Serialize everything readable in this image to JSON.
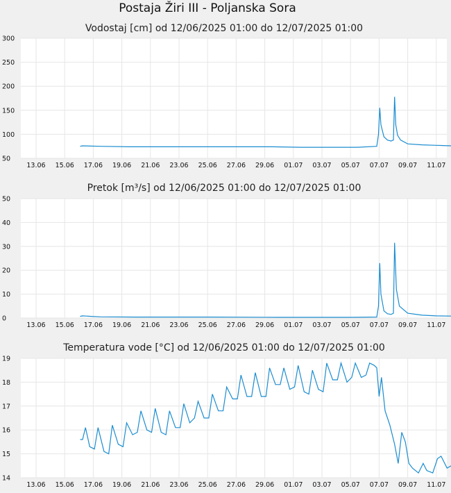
{
  "title": "Postaja Žiri III - Poljanska Sora",
  "chart_data": [
    {
      "type": "line",
      "title": "Vodostaj [cm] od 12/06/2025 01:00 do 12/07/2025 01:00",
      "xlim": [
        "2025-06-12 01:00",
        "2025-07-12 01:00"
      ],
      "ylim": [
        50,
        300
      ],
      "yticks": [
        "300",
        "250",
        "200",
        "150",
        "100",
        "50"
      ],
      "xticks": [
        "13.06",
        "15.06",
        "17.06",
        "19.06",
        "21.06",
        "23.06",
        "25.06",
        "27.06",
        "29.06",
        "01.07",
        "03.07",
        "05.07",
        "07.07",
        "09.07",
        "11.07"
      ],
      "grid": true,
      "color": "#1a8cd0",
      "series": [
        {
          "x": [
            "2025-06-16 02:00",
            "2025-06-16 06:00",
            "2025-06-17 12:00",
            "2025-06-19 12:00",
            "2025-06-21 12:00",
            "2025-06-23 12:00",
            "2025-06-25 12:00",
            "2025-06-27 12:00",
            "2025-06-29 12:00",
            "2025-07-01 12:00",
            "2025-07-03 12:00",
            "2025-07-05 12:00",
            "2025-07-06 20:00",
            "2025-07-06 23:00",
            "2025-07-07 01:00",
            "2025-07-07 03:00",
            "2025-07-07 08:00",
            "2025-07-07 14:00",
            "2025-07-07 20:00",
            "2025-07-08 00:00",
            "2025-07-08 02:00",
            "2025-07-08 04:00",
            "2025-07-08 07:00",
            "2025-07-08 12:00",
            "2025-07-09 00:00",
            "2025-07-10 00:00",
            "2025-07-11 00:00",
            "2025-07-12 01:00"
          ],
          "y": [
            75,
            76,
            75,
            74,
            74,
            74,
            74,
            74,
            74,
            73,
            73,
            73,
            75,
            100,
            155,
            120,
            95,
            88,
            86,
            88,
            178,
            120,
            98,
            88,
            80,
            78,
            77,
            76
          ]
        }
      ]
    },
    {
      "type": "line",
      "title": "Pretok [m³/s] od 12/06/2025 01:00 do 12/07/2025 01:00",
      "xlim": [
        "2025-06-12 01:00",
        "2025-07-12 01:00"
      ],
      "ylim": [
        0,
        50
      ],
      "yticks": [
        "50",
        "40",
        "30",
        "20",
        "10",
        "0"
      ],
      "xticks": [
        "13.06",
        "15.06",
        "17.06",
        "19.06",
        "21.06",
        "23.06",
        "25.06",
        "27.06",
        "29.06",
        "01.07",
        "03.07",
        "05.07",
        "07.07",
        "09.07",
        "11.07"
      ],
      "grid": true,
      "color": "#1a8cd0",
      "series": [
        {
          "x": [
            "2025-06-16 02:00",
            "2025-06-16 06:00",
            "2025-06-16 12:00",
            "2025-06-17 12:00",
            "2025-06-20 00:00",
            "2025-06-25 00:00",
            "2025-06-30 00:00",
            "2025-07-05 00:00",
            "2025-07-06 20:00",
            "2025-07-06 23:00",
            "2025-07-07 01:00",
            "2025-07-07 03:00",
            "2025-07-07 08:00",
            "2025-07-07 14:00",
            "2025-07-07 20:00",
            "2025-07-08 00:00",
            "2025-07-08 02:00",
            "2025-07-08 05:00",
            "2025-07-08 10:00",
            "2025-07-09 00:00",
            "2025-07-10 00:00",
            "2025-07-11 00:00",
            "2025-07-12 01:00"
          ],
          "y": [
            0.7,
            0.9,
            0.8,
            0.5,
            0.4,
            0.4,
            0.3,
            0.3,
            0.4,
            5,
            23,
            10,
            3,
            1.8,
            1.5,
            2,
            31.5,
            12,
            5,
            2,
            1.2,
            0.9,
            0.8
          ]
        }
      ]
    },
    {
      "type": "line",
      "title": "Temperatura vode [°C] od 12/06/2025 01:00 do 12/07/2025 01:00",
      "xlim": [
        "2025-06-12 01:00",
        "2025-07-12 01:00"
      ],
      "ylim": [
        14,
        19
      ],
      "yticks": [
        "19",
        "18",
        "17",
        "16",
        "15",
        "14"
      ],
      "xticks": [
        "13.06",
        "15.06",
        "17.06",
        "19.06",
        "21.06",
        "23.06",
        "25.06",
        "27.06",
        "29.06",
        "01.07",
        "03.07",
        "05.07",
        "07.07",
        "09.07",
        "11.07"
      ],
      "grid": true,
      "color": "#1a8cd0",
      "series": [
        {
          "x": [
            "2025-06-16 02:00",
            "2025-06-16 06:00",
            "2025-06-16 11:00",
            "2025-06-16 18:00",
            "2025-06-17 02:00",
            "2025-06-17 08:00",
            "2025-06-17 18:00",
            "2025-06-18 02:00",
            "2025-06-18 08:00",
            "2025-06-18 18:00",
            "2025-06-19 02:00",
            "2025-06-19 08:00",
            "2025-06-19 18:00",
            "2025-06-20 02:00",
            "2025-06-20 08:00",
            "2025-06-20 18:00",
            "2025-06-21 02:00",
            "2025-06-21 08:00",
            "2025-06-21 18:00",
            "2025-06-22 02:00",
            "2025-06-22 08:00",
            "2025-06-22 18:00",
            "2025-06-23 02:00",
            "2025-06-23 08:00",
            "2025-06-23 18:00",
            "2025-06-24 02:00",
            "2025-06-24 08:00",
            "2025-06-24 18:00",
            "2025-06-25 02:00",
            "2025-06-25 08:00",
            "2025-06-25 18:00",
            "2025-06-26 02:00",
            "2025-06-26 08:00",
            "2025-06-26 18:00",
            "2025-06-27 02:00",
            "2025-06-27 08:00",
            "2025-06-27 18:00",
            "2025-06-28 02:00",
            "2025-06-28 08:00",
            "2025-06-28 18:00",
            "2025-06-29 02:00",
            "2025-06-29 08:00",
            "2025-06-29 18:00",
            "2025-06-30 02:00",
            "2025-06-30 08:00",
            "2025-06-30 18:00",
            "2025-07-01 02:00",
            "2025-07-01 08:00",
            "2025-07-01 18:00",
            "2025-07-02 02:00",
            "2025-07-02 08:00",
            "2025-07-02 18:00",
            "2025-07-03 02:00",
            "2025-07-03 08:00",
            "2025-07-03 18:00",
            "2025-07-04 02:00",
            "2025-07-04 08:00",
            "2025-07-04 18:00",
            "2025-07-05 02:00",
            "2025-07-05 08:00",
            "2025-07-05 18:00",
            "2025-07-06 02:00",
            "2025-07-06 08:00",
            "2025-07-06 16:00",
            "2025-07-06 20:00",
            "2025-07-07 00:00",
            "2025-07-07 04:00",
            "2025-07-07 10:00",
            "2025-07-07 18:00",
            "2025-07-08 02:00",
            "2025-07-08 08:00",
            "2025-07-08 14:00",
            "2025-07-08 20:00",
            "2025-07-09 02:00",
            "2025-07-09 08:00",
            "2025-07-09 18:00",
            "2025-07-10 02:00",
            "2025-07-10 08:00",
            "2025-07-10 18:00",
            "2025-07-11 02:00",
            "2025-07-11 08:00",
            "2025-07-11 18:00",
            "2025-07-12 01:00"
          ],
          "y": [
            15.6,
            15.6,
            16.1,
            15.3,
            15.2,
            16.1,
            15.1,
            15.0,
            16.2,
            15.4,
            15.3,
            16.3,
            15.8,
            15.9,
            16.8,
            16.0,
            15.9,
            16.9,
            15.9,
            15.8,
            16.8,
            16.1,
            16.1,
            17.1,
            16.3,
            16.5,
            17.2,
            16.5,
            16.5,
            17.5,
            16.8,
            16.8,
            17.8,
            17.3,
            17.3,
            18.3,
            17.4,
            17.4,
            18.4,
            17.4,
            17.4,
            18.6,
            17.9,
            17.9,
            18.6,
            17.7,
            17.8,
            18.7,
            17.6,
            17.5,
            18.5,
            17.7,
            17.6,
            18.8,
            18.1,
            18.1,
            18.8,
            18.0,
            18.2,
            18.8,
            18.2,
            18.3,
            18.8,
            18.7,
            18.6,
            17.4,
            18.2,
            16.8,
            16.2,
            15.4,
            14.6,
            15.9,
            15.5,
            14.6,
            14.4,
            14.2,
            14.6,
            14.3,
            14.2,
            14.8,
            14.9,
            14.4,
            14.5
          ]
        }
      ]
    }
  ]
}
